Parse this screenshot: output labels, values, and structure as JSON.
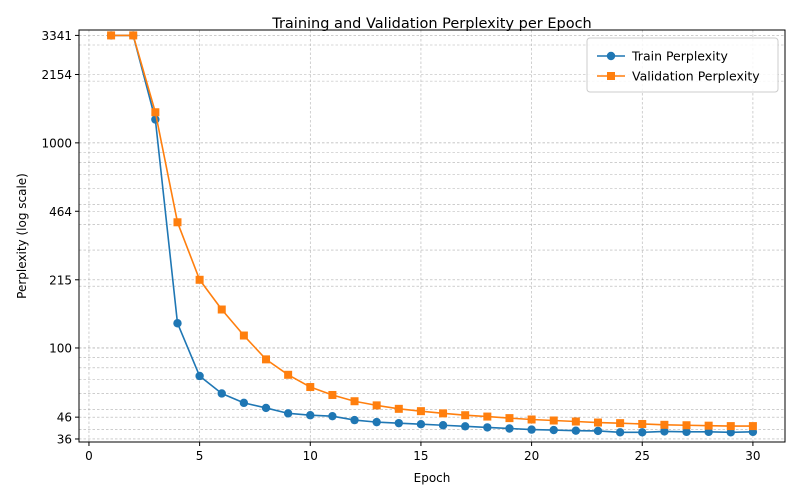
{
  "chart_data": {
    "type": "line",
    "title": "Training and Validation Perplexity per Epoch",
    "xlabel": "Epoch",
    "ylabel": "Perplexity (log scale)",
    "yscale": "log",
    "xlim": [
      -0.45,
      31.45
    ],
    "ylim": [
      34.8,
      3550
    ],
    "xticks": [
      0,
      5,
      10,
      15,
      20,
      25,
      30
    ],
    "yticks": [
      36,
      46,
      100,
      215,
      464,
      1000,
      2154,
      3341
    ],
    "ytick_labels": [
      "36",
      "46",
      "100",
      "215",
      "464",
      "1000",
      "2154",
      "3341"
    ],
    "grid": true,
    "legend_position": "top-right",
    "x": [
      1,
      2,
      3,
      4,
      5,
      6,
      7,
      8,
      9,
      10,
      11,
      12,
      13,
      14,
      15,
      16,
      17,
      18,
      19,
      20,
      21,
      22,
      23,
      24,
      25,
      26,
      27,
      28,
      29,
      30
    ],
    "series": [
      {
        "name": "Train Perplexity",
        "color": "#1f77b4",
        "marker": "circle",
        "values": [
          3341,
          3341,
          1300,
          132,
          73,
          60,
          54,
          51,
          48,
          47,
          46.5,
          44.5,
          43.5,
          43,
          42.5,
          42,
          41.5,
          41,
          40.5,
          40,
          39.8,
          39.5,
          39.4,
          38.8,
          38.8,
          39.2,
          39,
          39,
          38.8,
          39
        ]
      },
      {
        "name": "Validation Perplexity",
        "color": "#ff7f0e",
        "marker": "square",
        "values": [
          3341,
          3341,
          1410,
          410,
          215,
          154,
          115,
          88,
          74,
          64.5,
          59,
          55,
          52.5,
          50.5,
          49.2,
          48,
          47,
          46.3,
          45.5,
          44.8,
          44.3,
          43.8,
          43.3,
          43,
          42.6,
          42.2,
          42,
          41.8,
          41.6,
          41.6
        ]
      }
    ]
  }
}
